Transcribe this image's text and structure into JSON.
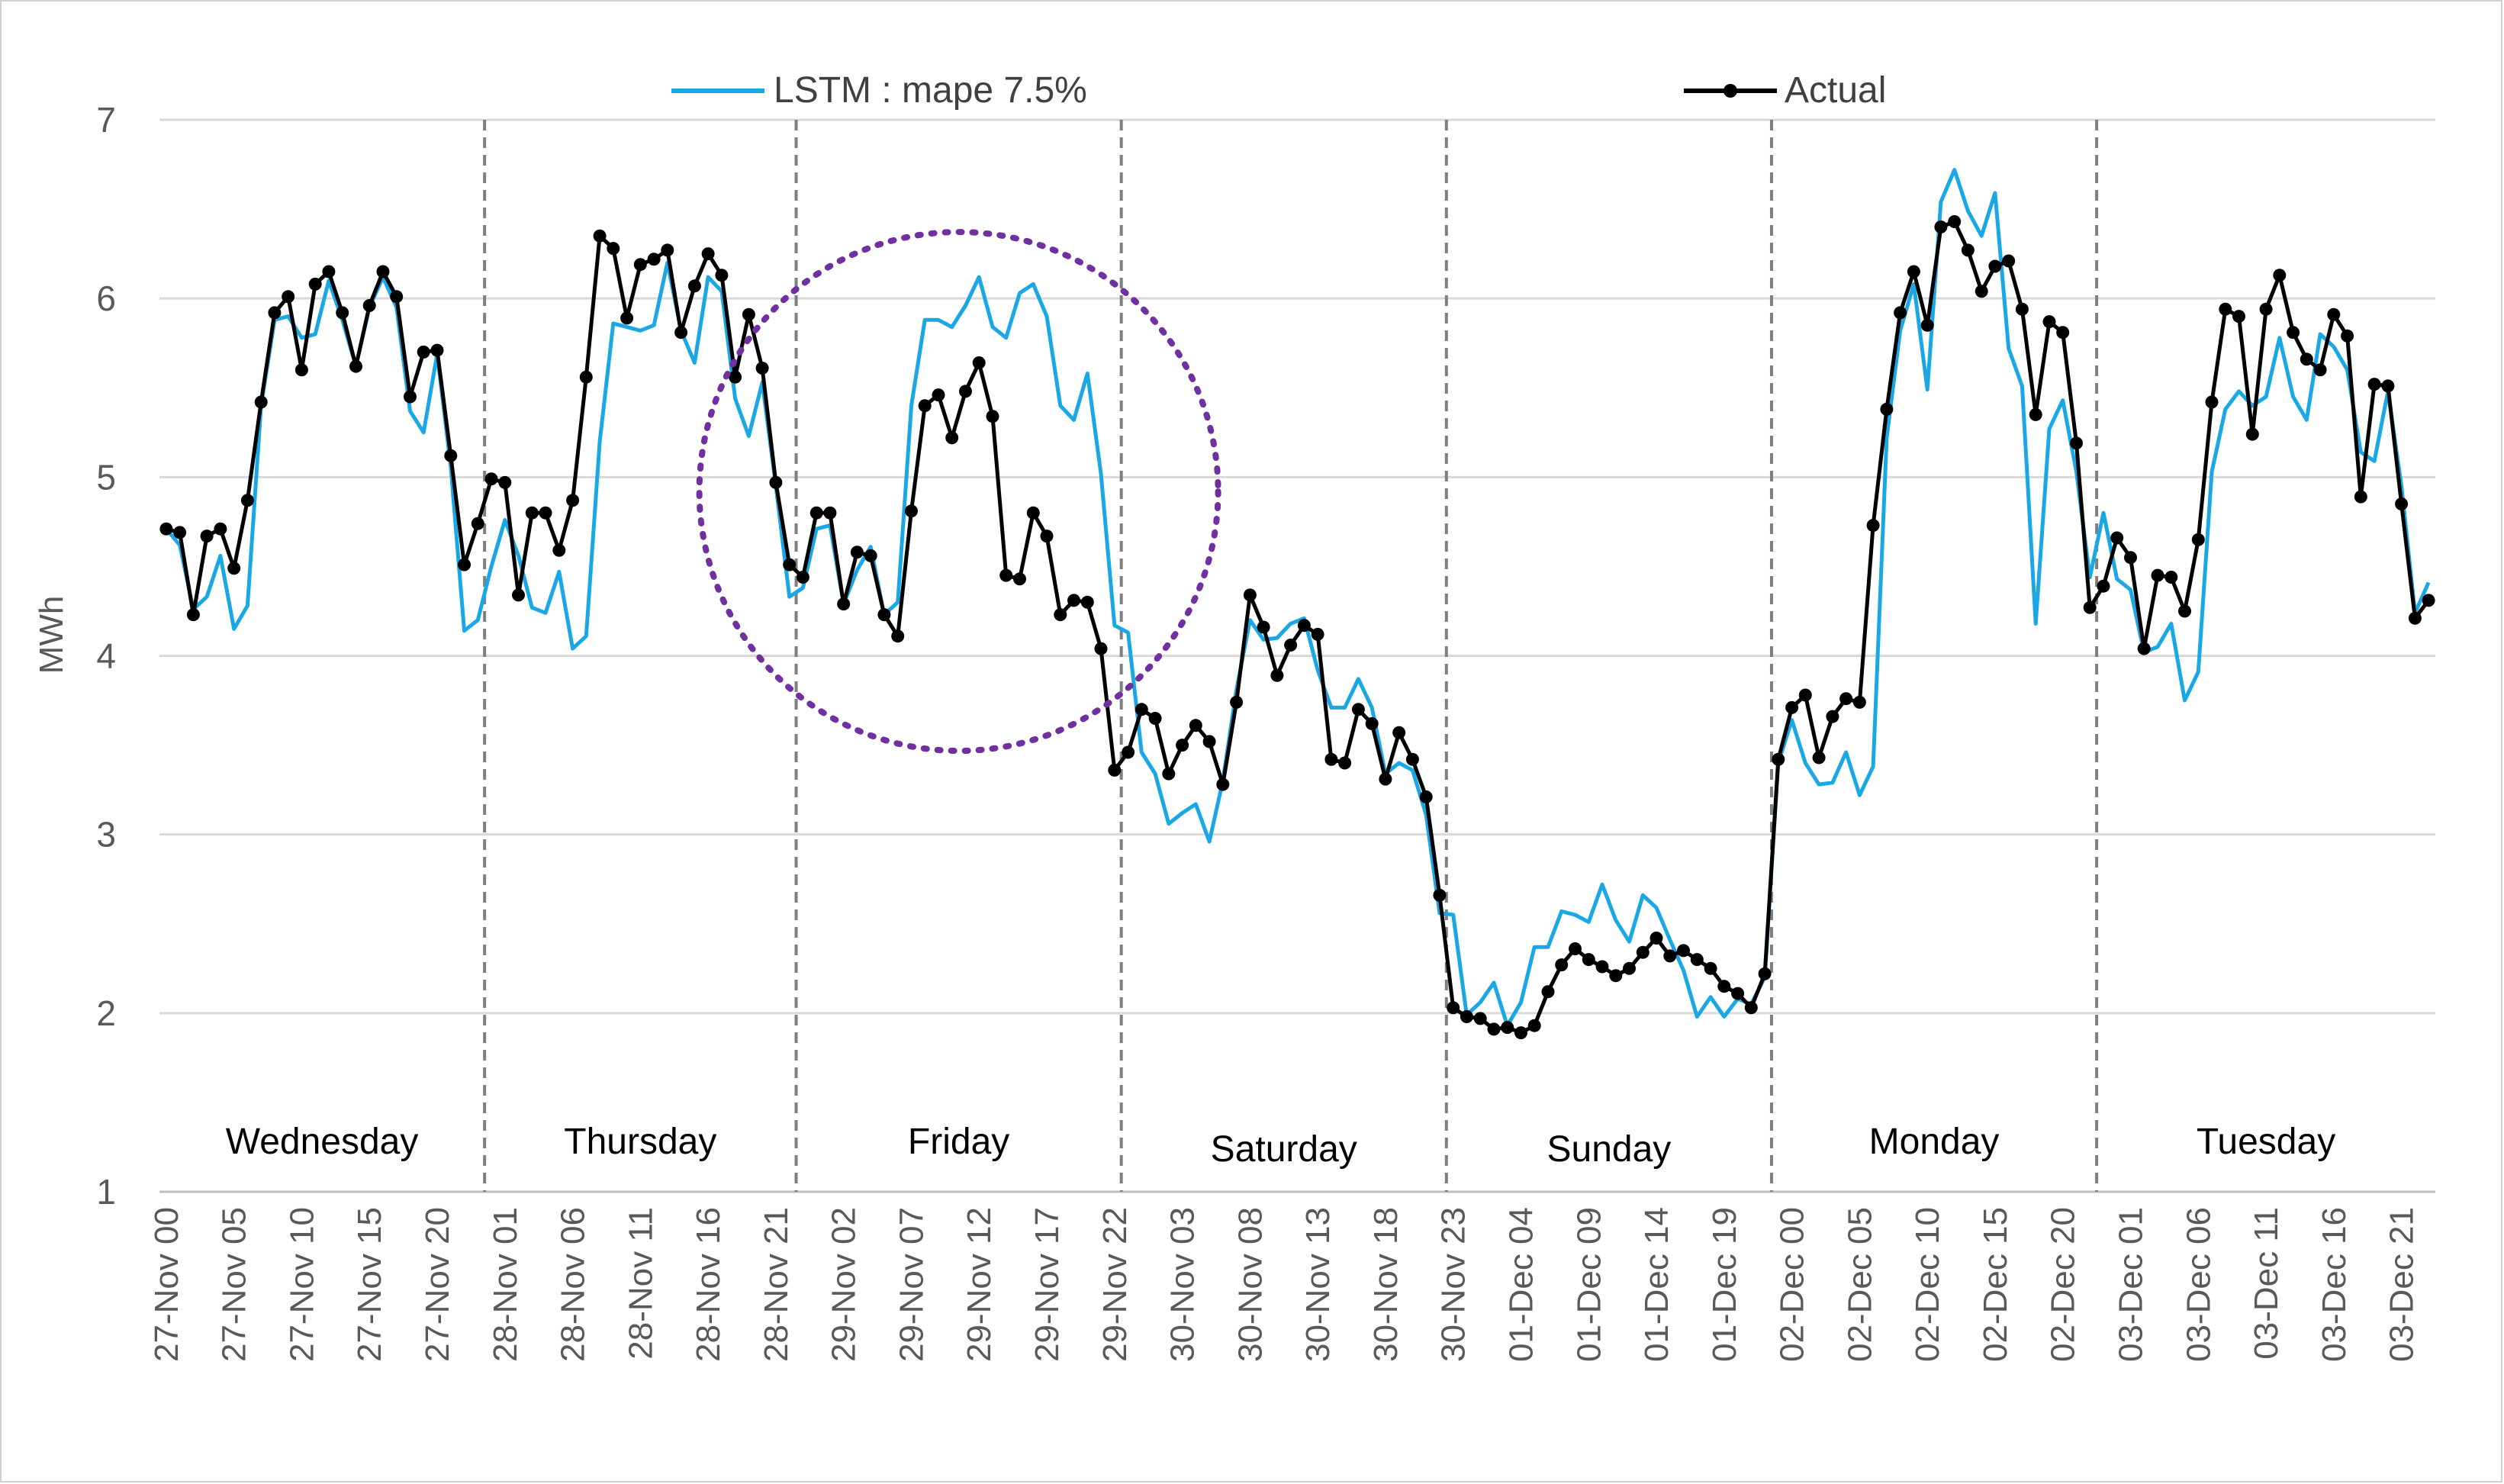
{
  "chart_data": {
    "type": "line",
    "title": "",
    "xlabel": "",
    "ylabel": "MWh",
    "ylim": [
      1,
      7
    ],
    "y_ticks": [
      "1",
      "2",
      "3",
      "4",
      "5",
      "6",
      "7"
    ],
    "x_tick_labels": [
      "27-Nov 00",
      "27-Nov 05",
      "27-Nov 10",
      "27-Nov 15",
      "27-Nov 20",
      "28-Nov 01",
      "28-Nov 06",
      "28-Nov 11",
      "28-Nov 16",
      "28-Nov 21",
      "29-Nov 02",
      "29-Nov 07",
      "29-Nov 12",
      "29-Nov 17",
      "29-Nov 22",
      "30-Nov 03",
      "30-Nov 08",
      "30-Nov 13",
      "30-Nov 18",
      "30-Nov 23",
      "01-Dec 04",
      "01-Dec 09",
      "01-Dec 14",
      "01-Dec 19",
      "02-Dec 00",
      "02-Dec 05",
      "02-Dec 10",
      "02-Dec 15",
      "02-Dec 20",
      "03-Dec 01",
      "03-Dec 06",
      "03-Dec 11",
      "03-Dec 16",
      "03-Dec 21"
    ],
    "day_boundaries_hour_index": [
      24,
      47,
      71,
      95,
      119,
      143
    ],
    "day_labels": [
      "Wednesday",
      "Thursday",
      "Friday",
      "Saturday",
      "Sunday",
      "Monday",
      "Tuesday"
    ],
    "highlight_circle": {
      "center_hour_index": 58.5,
      "center_value": 4.92,
      "note": "dotted circle around Friday peak"
    },
    "legend": {
      "placement": "top",
      "entries": [
        "LSTM : mape 7.5%",
        "Actual"
      ]
    },
    "series": [
      {
        "name": "Actual",
        "color": "#000000",
        "marker": true,
        "values": [
          4.71,
          4.69,
          4.23,
          4.67,
          4.71,
          4.49,
          4.87,
          5.42,
          5.92,
          6.01,
          5.6,
          6.08,
          6.15,
          5.92,
          5.62,
          5.96,
          6.15,
          6.01,
          5.45,
          5.7,
          5.71,
          5.12,
          4.51,
          4.74,
          4.99,
          4.97,
          4.34,
          4.8,
          4.8,
          4.59,
          4.87,
          5.56,
          6.35,
          6.28,
          5.89,
          6.19,
          6.22,
          6.27,
          5.81,
          6.07,
          6.25,
          6.13,
          5.56,
          5.91,
          5.61,
          4.97,
          4.51,
          4.44,
          4.8,
          4.8,
          4.29,
          4.58,
          4.56,
          4.23,
          4.11,
          4.81,
          5.4,
          5.46,
          5.22,
          5.48,
          5.64,
          5.34,
          4.45,
          4.43,
          4.8,
          4.67,
          4.23,
          4.31,
          4.3,
          4.04,
          3.36,
          3.46,
          3.7,
          3.65,
          3.34,
          3.5,
          3.61,
          3.52,
          3.28,
          3.74,
          4.34,
          4.16,
          3.89,
          4.06,
          4.17,
          4.12,
          3.42,
          3.4,
          3.7,
          3.62,
          3.31,
          3.57,
          3.42,
          3.21,
          2.66,
          2.03,
          1.98,
          1.97,
          1.91,
          1.92,
          1.89,
          1.93,
          2.12,
          2.27,
          2.36,
          2.3,
          2.26,
          2.21,
          2.25,
          2.34,
          2.42,
          2.32,
          2.35,
          2.3,
          2.25,
          2.15,
          2.11,
          2.03,
          2.22,
          3.42,
          3.71,
          3.78,
          3.43,
          3.66,
          3.76,
          3.74,
          4.73,
          5.38,
          5.92,
          6.15,
          5.85,
          6.4,
          6.43,
          6.27,
          6.04,
          6.18,
          6.21,
          5.94,
          5.35,
          5.87,
          5.81,
          5.19,
          4.27,
          4.39,
          4.66,
          4.55,
          4.04,
          4.45,
          4.44,
          4.25,
          4.65,
          5.42,
          5.94,
          5.9,
          5.24,
          5.94,
          6.13,
          5.81,
          5.66,
          5.6,
          5.91,
          5.79,
          4.89,
          5.52,
          5.51,
          4.85,
          4.21,
          4.31
        ]
      },
      {
        "name": "LSTM : mape 7.5%",
        "color": "#1aa7e6",
        "marker": false,
        "values": [
          4.71,
          4.62,
          4.26,
          4.33,
          4.56,
          4.15,
          4.28,
          5.4,
          5.88,
          5.9,
          5.78,
          5.8,
          6.1,
          5.88,
          5.62,
          5.95,
          6.12,
          5.95,
          5.37,
          5.25,
          5.69,
          5.06,
          4.14,
          4.2,
          4.5,
          4.76,
          4.56,
          4.27,
          4.24,
          4.47,
          4.04,
          4.11,
          5.2,
          5.86,
          5.84,
          5.82,
          5.85,
          6.2,
          5.82,
          5.64,
          6.12,
          6.04,
          5.44,
          5.23,
          5.53,
          4.95,
          4.33,
          4.38,
          4.71,
          4.73,
          4.29,
          4.48,
          4.61,
          4.23,
          4.3,
          5.4,
          5.88,
          5.88,
          5.84,
          5.96,
          6.12,
          5.84,
          5.78,
          6.03,
          6.08,
          5.9,
          5.4,
          5.32,
          5.58,
          5.02,
          4.17,
          4.13,
          3.46,
          3.34,
          3.06,
          3.12,
          3.17,
          2.96,
          3.3,
          3.81,
          4.2,
          4.09,
          4.1,
          4.18,
          4.21,
          3.92,
          3.71,
          3.71,
          3.87,
          3.71,
          3.34,
          3.4,
          3.36,
          3.11,
          2.56,
          2.55,
          1.99,
          2.06,
          2.17,
          1.93,
          2.06,
          2.37,
          2.37,
          2.57,
          2.55,
          2.51,
          2.72,
          2.52,
          2.4,
          2.66,
          2.59,
          2.41,
          2.24,
          1.98,
          2.09,
          1.98,
          2.08,
          2.05,
          2.2,
          3.4,
          3.64,
          3.4,
          3.28,
          3.29,
          3.46,
          3.22,
          3.38,
          5.22,
          5.82,
          6.08,
          5.49,
          6.54,
          6.72,
          6.49,
          6.35,
          6.59,
          5.72,
          5.51,
          4.18,
          5.27,
          5.43,
          5.03,
          4.44,
          4.8,
          4.43,
          4.37,
          4.02,
          4.05,
          4.18,
          3.75,
          3.91,
          5.03,
          5.38,
          5.48,
          5.4,
          5.45,
          5.78,
          5.45,
          5.32,
          5.8,
          5.73,
          5.6,
          5.14,
          5.09,
          5.48,
          4.95,
          4.24,
          4.41
        ]
      }
    ]
  }
}
